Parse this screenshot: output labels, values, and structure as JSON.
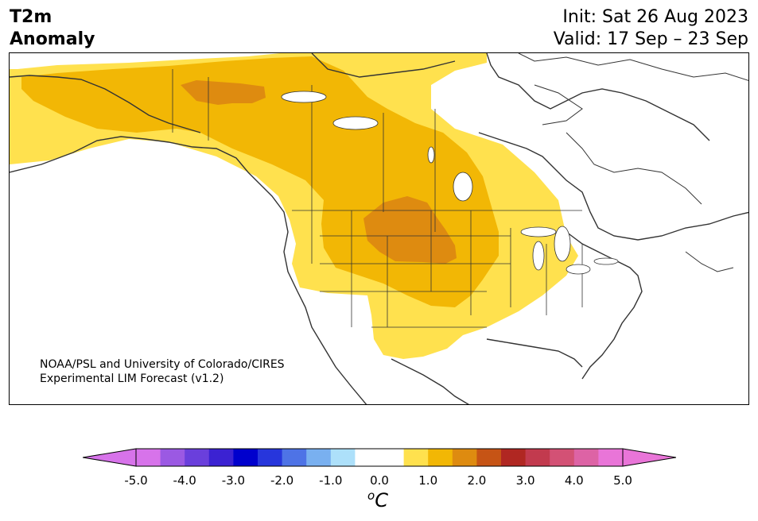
{
  "title": {
    "line1": "T2m",
    "line2": "Anomaly"
  },
  "dates": {
    "init": "Init: Sat 26 Aug 2023",
    "valid": "Valid: 17 Sep – 23 Sep"
  },
  "credit": {
    "line1": "NOAA/PSL and University of Colorado/CIRES",
    "line2": "Experimental LIM Forecast (v1.2)"
  },
  "colorbar": {
    "unit_base": "o",
    "unit": "C",
    "tick_labels": [
      "-5.0",
      "-4.0",
      "-3.0",
      "-2.0",
      "-1.0",
      "0.0",
      "1.0",
      "2.0",
      "3.0",
      "4.0",
      "5.0"
    ],
    "bins": [
      {
        "color": "#d773ea"
      },
      {
        "color": "#9b59e3"
      },
      {
        "color": "#6a3fdc"
      },
      {
        "color": "#3b22d2"
      },
      {
        "color": "#0000cd"
      },
      {
        "color": "#2736dc"
      },
      {
        "color": "#4e73e6"
      },
      {
        "color": "#79b0f0"
      },
      {
        "color": "#ade0fa"
      },
      {
        "color": "#ffffff"
      },
      {
        "color": "#ffffff"
      },
      {
        "color": "#ffe14e"
      },
      {
        "color": "#f2b705"
      },
      {
        "color": "#de8b10"
      },
      {
        "color": "#c65415"
      },
      {
        "color": "#b02722"
      },
      {
        "color": "#c23a4e"
      },
      {
        "color": "#d35175"
      },
      {
        "color": "#dd63a5"
      },
      {
        "color": "#e975d8"
      }
    ],
    "under_color": "#d773ea",
    "over_color": "#e975d8"
  },
  "map_colors": {
    "anomaly_0_5_1_0": "#ffe14e",
    "anomaly_1_0_1_5": "#f2b705",
    "anomaly_1_5_2_0": "#de8b10",
    "coastline": "#333333"
  }
}
